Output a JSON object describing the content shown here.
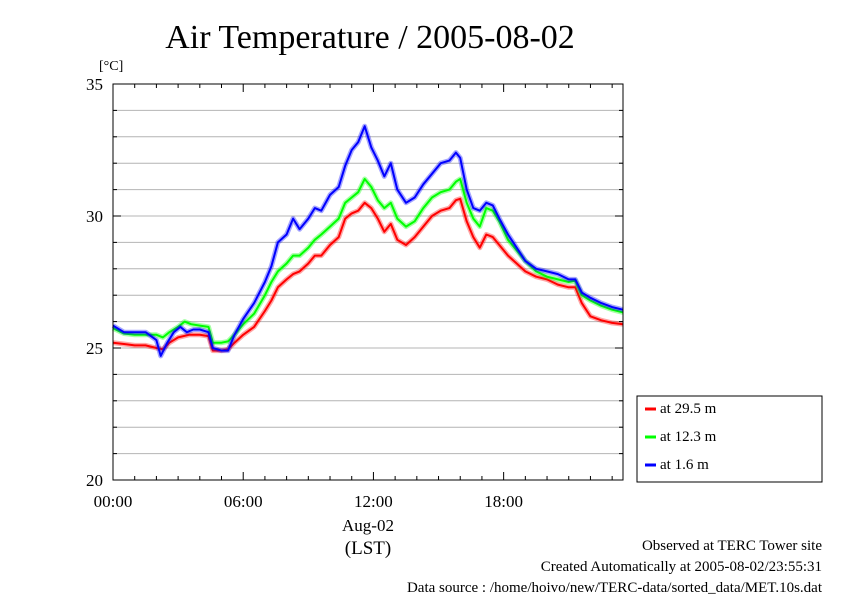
{
  "chart_data": {
    "type": "line",
    "title": "Air Temperature / 2005-08-02",
    "ylabel": "[°C]",
    "xlabel": "(LST)",
    "date_label": "Aug-02",
    "ylim": [
      20,
      35
    ],
    "y_ticks": [
      20,
      25,
      30,
      35
    ],
    "y_minor_step": 1,
    "xlim": [
      0,
      23.5
    ],
    "x_ticks": [
      0,
      6,
      12,
      18
    ],
    "x_tick_labels": [
      "00:00",
      "06:00",
      "12:00",
      "18:00"
    ],
    "grid": "horizontal",
    "legend_position": "right",
    "series": [
      {
        "name": "at 29.5 m",
        "color": "#ff0000",
        "points": [
          [
            0,
            25.2
          ],
          [
            0.5,
            25.15
          ],
          [
            1,
            25.1
          ],
          [
            1.5,
            25.1
          ],
          [
            2,
            25.0
          ],
          [
            2.3,
            24.95
          ],
          [
            2.6,
            25.2
          ],
          [
            3,
            25.4
          ],
          [
            3.5,
            25.5
          ],
          [
            4,
            25.5
          ],
          [
            4.4,
            25.45
          ],
          [
            4.6,
            24.9
          ],
          [
            5,
            24.9
          ],
          [
            5.3,
            24.95
          ],
          [
            5.6,
            25.2
          ],
          [
            6,
            25.5
          ],
          [
            6.5,
            25.8
          ],
          [
            7,
            26.4
          ],
          [
            7.3,
            26.8
          ],
          [
            7.6,
            27.3
          ],
          [
            8,
            27.6
          ],
          [
            8.3,
            27.8
          ],
          [
            8.6,
            27.9
          ],
          [
            9,
            28.2
          ],
          [
            9.3,
            28.5
          ],
          [
            9.6,
            28.5
          ],
          [
            10,
            28.9
          ],
          [
            10.4,
            29.2
          ],
          [
            10.7,
            29.9
          ],
          [
            11,
            30.1
          ],
          [
            11.3,
            30.2
          ],
          [
            11.6,
            30.5
          ],
          [
            11.9,
            30.3
          ],
          [
            12.2,
            29.9
          ],
          [
            12.5,
            29.4
          ],
          [
            12.8,
            29.7
          ],
          [
            13.1,
            29.1
          ],
          [
            13.5,
            28.9
          ],
          [
            13.9,
            29.2
          ],
          [
            14.3,
            29.6
          ],
          [
            14.7,
            30.0
          ],
          [
            15.1,
            30.2
          ],
          [
            15.5,
            30.3
          ],
          [
            15.8,
            30.6
          ],
          [
            16,
            30.65
          ],
          [
            16.3,
            29.8
          ],
          [
            16.6,
            29.2
          ],
          [
            16.9,
            28.8
          ],
          [
            17.2,
            29.3
          ],
          [
            17.5,
            29.2
          ],
          [
            17.8,
            28.9
          ],
          [
            18.2,
            28.5
          ],
          [
            18.6,
            28.2
          ],
          [
            19,
            27.9
          ],
          [
            19.5,
            27.7
          ],
          [
            20,
            27.6
          ],
          [
            20.5,
            27.4
          ],
          [
            21,
            27.3
          ],
          [
            21.3,
            27.3
          ],
          [
            21.6,
            26.7
          ],
          [
            22,
            26.2
          ],
          [
            22.5,
            26.05
          ],
          [
            23,
            25.95
          ],
          [
            23.5,
            25.9
          ]
        ]
      },
      {
        "name": "at 12.3 m",
        "color": "#00ff00",
        "points": [
          [
            0,
            25.75
          ],
          [
            0.5,
            25.55
          ],
          [
            1,
            25.5
          ],
          [
            1.5,
            25.5
          ],
          [
            2,
            25.5
          ],
          [
            2.3,
            25.4
          ],
          [
            2.6,
            25.6
          ],
          [
            3,
            25.8
          ],
          [
            3.3,
            26.0
          ],
          [
            3.6,
            25.9
          ],
          [
            4,
            25.85
          ],
          [
            4.4,
            25.8
          ],
          [
            4.6,
            25.2
          ],
          [
            5,
            25.2
          ],
          [
            5.3,
            25.25
          ],
          [
            5.6,
            25.5
          ],
          [
            6,
            25.9
          ],
          [
            6.5,
            26.3
          ],
          [
            7,
            27.0
          ],
          [
            7.3,
            27.5
          ],
          [
            7.6,
            27.9
          ],
          [
            8,
            28.2
          ],
          [
            8.3,
            28.5
          ],
          [
            8.6,
            28.5
          ],
          [
            9,
            28.8
          ],
          [
            9.3,
            29.1
          ],
          [
            9.6,
            29.3
          ],
          [
            10,
            29.6
          ],
          [
            10.4,
            29.9
          ],
          [
            10.7,
            30.5
          ],
          [
            11,
            30.7
          ],
          [
            11.3,
            30.9
          ],
          [
            11.6,
            31.4
          ],
          [
            11.9,
            31.1
          ],
          [
            12.2,
            30.6
          ],
          [
            12.5,
            30.3
          ],
          [
            12.8,
            30.5
          ],
          [
            13.1,
            29.9
          ],
          [
            13.5,
            29.6
          ],
          [
            13.9,
            29.8
          ],
          [
            14.3,
            30.3
          ],
          [
            14.7,
            30.7
          ],
          [
            15.1,
            30.9
          ],
          [
            15.5,
            31.0
          ],
          [
            15.8,
            31.3
          ],
          [
            16,
            31.4
          ],
          [
            16.3,
            30.5
          ],
          [
            16.6,
            29.9
          ],
          [
            16.9,
            29.6
          ],
          [
            17.2,
            30.3
          ],
          [
            17.5,
            30.2
          ],
          [
            17.8,
            29.8
          ],
          [
            18.2,
            29.1
          ],
          [
            18.6,
            28.7
          ],
          [
            19,
            28.3
          ],
          [
            19.5,
            27.9
          ],
          [
            20,
            27.7
          ],
          [
            20.5,
            27.6
          ],
          [
            21,
            27.5
          ],
          [
            21.3,
            27.55
          ],
          [
            21.6,
            27.0
          ],
          [
            22,
            26.8
          ],
          [
            22.5,
            26.6
          ],
          [
            23,
            26.45
          ],
          [
            23.5,
            26.35
          ]
        ]
      },
      {
        "name": "at 1.6 m",
        "color": "#0000ff",
        "points": [
          [
            0,
            25.85
          ],
          [
            0.5,
            25.6
          ],
          [
            1,
            25.6
          ],
          [
            1.5,
            25.6
          ],
          [
            2,
            25.3
          ],
          [
            2.2,
            24.7
          ],
          [
            2.5,
            25.2
          ],
          [
            2.8,
            25.6
          ],
          [
            3.1,
            25.8
          ],
          [
            3.4,
            25.6
          ],
          [
            3.7,
            25.7
          ],
          [
            4,
            25.7
          ],
          [
            4.4,
            25.6
          ],
          [
            4.6,
            25.0
          ],
          [
            5,
            24.9
          ],
          [
            5.3,
            24.9
          ],
          [
            5.6,
            25.5
          ],
          [
            6,
            26.1
          ],
          [
            6.5,
            26.7
          ],
          [
            7,
            27.5
          ],
          [
            7.3,
            28.1
          ],
          [
            7.6,
            29.0
          ],
          [
            8,
            29.3
          ],
          [
            8.3,
            29.9
          ],
          [
            8.6,
            29.5
          ],
          [
            9,
            29.9
          ],
          [
            9.3,
            30.3
          ],
          [
            9.6,
            30.2
          ],
          [
            10,
            30.8
          ],
          [
            10.4,
            31.1
          ],
          [
            10.7,
            31.9
          ],
          [
            11,
            32.5
          ],
          [
            11.3,
            32.8
          ],
          [
            11.6,
            33.4
          ],
          [
            11.9,
            32.6
          ],
          [
            12.2,
            32.1
          ],
          [
            12.5,
            31.5
          ],
          [
            12.8,
            32.0
          ],
          [
            13.1,
            31.0
          ],
          [
            13.5,
            30.5
          ],
          [
            13.9,
            30.7
          ],
          [
            14.3,
            31.2
          ],
          [
            14.7,
            31.6
          ],
          [
            15.1,
            32.0
          ],
          [
            15.5,
            32.1
          ],
          [
            15.8,
            32.4
          ],
          [
            16,
            32.2
          ],
          [
            16.3,
            31.0
          ],
          [
            16.6,
            30.3
          ],
          [
            16.9,
            30.2
          ],
          [
            17.2,
            30.5
          ],
          [
            17.5,
            30.4
          ],
          [
            17.8,
            29.9
          ],
          [
            18.2,
            29.3
          ],
          [
            18.6,
            28.8
          ],
          [
            19,
            28.3
          ],
          [
            19.5,
            28.0
          ],
          [
            20,
            27.9
          ],
          [
            20.5,
            27.8
          ],
          [
            21,
            27.6
          ],
          [
            21.3,
            27.6
          ],
          [
            21.6,
            27.1
          ],
          [
            22,
            26.9
          ],
          [
            22.5,
            26.7
          ],
          [
            23,
            26.55
          ],
          [
            23.5,
            26.45
          ]
        ]
      }
    ]
  },
  "footer": {
    "site": "Observed at TERC Tower site",
    "created": "Created Automatically at 2005-08-02/23:55:31",
    "source": "Data source : /home/hoivo/new/TERC-data/sorted_data/MET.10s.dat"
  }
}
